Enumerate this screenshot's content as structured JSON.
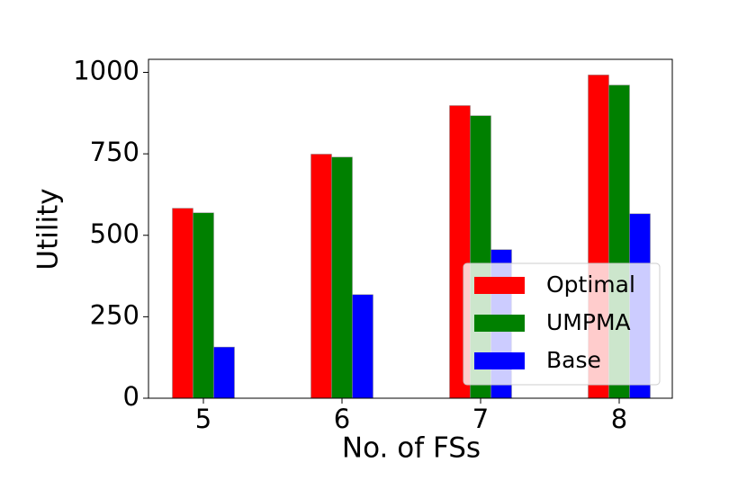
{
  "chart_data": {
    "type": "bar",
    "x_label": "No. of FSs",
    "y_label": "Utility",
    "categories": [
      "5",
      "6",
      "7",
      "8"
    ],
    "series": [
      {
        "name": "Optimal",
        "color": "#ff0000",
        "values": [
          583,
          749,
          898,
          992
        ]
      },
      {
        "name": "UMPMA",
        "color": "#008000",
        "values": [
          569,
          740,
          867,
          961
        ]
      },
      {
        "name": "Base",
        "color": "#0000ff",
        "values": [
          157,
          318,
          456,
          566
        ]
      }
    ],
    "ylim": [
      0,
      1040
    ],
    "yticks": [
      0,
      250,
      500,
      750,
      1000
    ],
    "legend": "lower right"
  }
}
